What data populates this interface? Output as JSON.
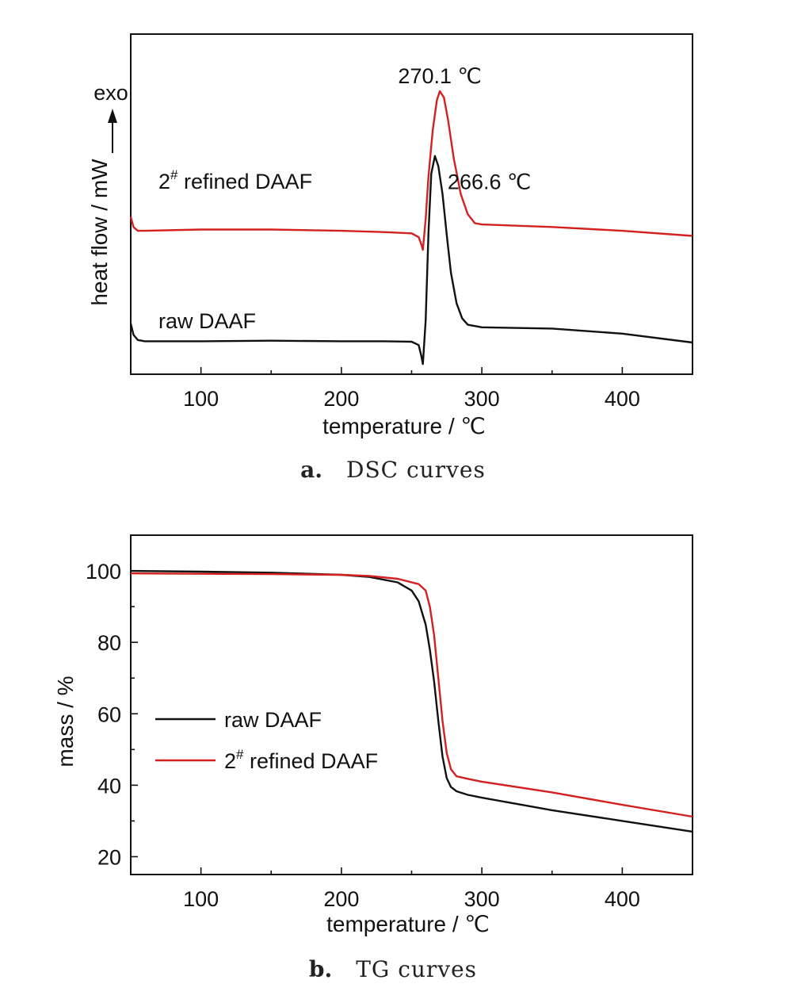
{
  "chart_data": [
    {
      "type": "line",
      "panel_label": "a.",
      "caption": "DSC curves",
      "xlabel": "temperature / ℃",
      "ylabel": "heat flow / mW",
      "xlim": [
        50,
        450
      ],
      "xticks": [
        100,
        200,
        300,
        400
      ],
      "yticks_labeled": false,
      "exo_label": "exo",
      "series": [
        {
          "name": "2# refined DAAF",
          "label_base": "2",
          "label_sup": "#",
          "label_rest": " refined DAAF",
          "color": "#d42020",
          "x": [
            50,
            52,
            55,
            60,
            100,
            150,
            200,
            230,
            250,
            255,
            257,
            258,
            260,
            262,
            265,
            268,
            270.1,
            273,
            276,
            280,
            285,
            290,
            295,
            300,
            350,
            400,
            450
          ],
          "y": [
            5.6,
            5.2,
            5.05,
            5.05,
            5.1,
            5.1,
            5.05,
            5.0,
            4.95,
            4.8,
            4.5,
            4.3,
            5.5,
            7.2,
            9.0,
            10.2,
            10.55,
            10.3,
            9.4,
            7.9,
            6.5,
            5.7,
            5.35,
            5.3,
            5.2,
            5.05,
            4.85
          ]
        },
        {
          "name": "raw DAAF",
          "color": "#111111",
          "x": [
            50,
            52,
            55,
            60,
            100,
            150,
            200,
            230,
            250,
            255,
            257,
            258,
            260,
            262,
            264,
            266.6,
            269,
            272,
            275,
            278,
            282,
            286,
            290,
            300,
            350,
            400,
            450
          ],
          "y": [
            1.4,
            0.95,
            0.75,
            0.7,
            0.7,
            0.72,
            0.7,
            0.7,
            0.68,
            0.55,
            0.1,
            -0.2,
            1.5,
            5.0,
            7.3,
            8.0,
            7.6,
            6.5,
            4.9,
            3.4,
            2.2,
            1.6,
            1.35,
            1.25,
            1.2,
            1.0,
            0.65
          ]
        }
      ],
      "annotations": [
        {
          "text": "270.1 ℃",
          "x": 270.1,
          "y": 10.55
        },
        {
          "text": "266.6 ℃",
          "x": 266.6,
          "y": 8.0
        }
      ],
      "ylim": [
        -0.6,
        12.8
      ]
    },
    {
      "type": "line",
      "panel_label": "b.",
      "caption": "TG curves",
      "xlabel": "temperature / ℃",
      "ylabel": "mass / %",
      "xlim": [
        50,
        450
      ],
      "ylim": [
        15,
        110
      ],
      "xticks": [
        100,
        200,
        300,
        400
      ],
      "yticks": [
        20,
        40,
        60,
        80,
        100
      ],
      "legend_position": "center-left",
      "series": [
        {
          "name": "raw DAAF",
          "color": "#111111",
          "x": [
            50,
            100,
            150,
            200,
            220,
            240,
            250,
            255,
            260,
            263,
            266,
            269,
            272,
            275,
            278,
            282,
            290,
            300,
            350,
            400,
            450
          ],
          "y": [
            100,
            99.8,
            99.5,
            98.9,
            98.3,
            96.8,
            94.5,
            91.5,
            85,
            78,
            69,
            58,
            48,
            42,
            39.5,
            38.3,
            37.3,
            36.5,
            33,
            30,
            27
          ]
        },
        {
          "name": "2# refined DAAF",
          "label_base": "2",
          "label_sup": "#",
          "label_rest": " refined DAAF",
          "color": "#d42020",
          "x": [
            50,
            100,
            150,
            200,
            220,
            240,
            255,
            260,
            263,
            266,
            269,
            272,
            275,
            278,
            282,
            290,
            300,
            350,
            400,
            450
          ],
          "y": [
            99.3,
            99.2,
            99.1,
            98.9,
            98.6,
            97.8,
            96.3,
            94.5,
            90,
            82,
            70,
            58,
            49,
            44.5,
            42.5,
            41.8,
            41,
            38,
            34.5,
            31.2
          ]
        }
      ]
    }
  ]
}
